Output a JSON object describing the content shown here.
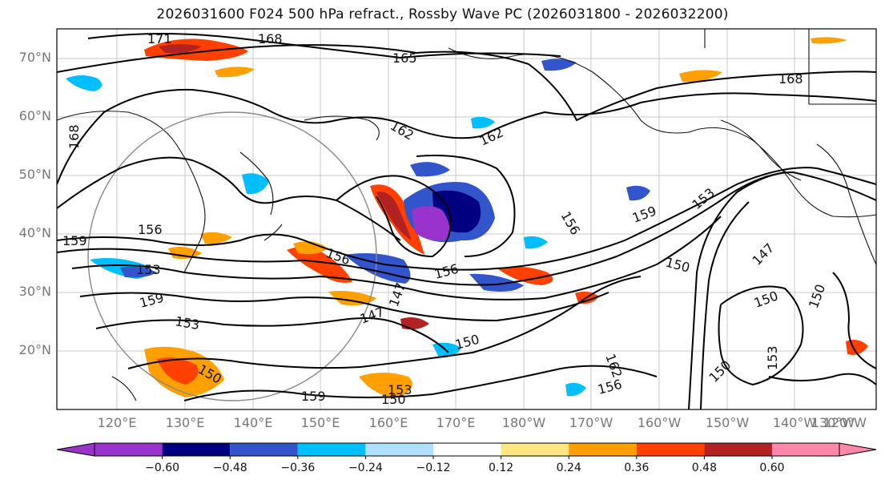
{
  "title": "2026031600 F024 500 hPa refract., Rossby Wave PC (2026031800 - 2026032200)",
  "lat_labels": [
    "70°N",
    "60°N",
    "50°N",
    "40°N",
    "30°N",
    "20°N"
  ],
  "lon_labels": [
    "120°E",
    "130°E",
    "140°E",
    "150°E",
    "160°E",
    "170°E",
    "180°W",
    "170°W",
    "160°W",
    "150°W",
    "140°W",
    "130°W",
    "120°W"
  ],
  "colorbar": {
    "ticks": [
      "−0.60",
      "−0.48",
      "−0.36",
      "−0.24",
      "−0.12",
      "0.12",
      "0.24",
      "0.36",
      "0.48",
      "0.60"
    ],
    "colors": [
      "#9933cc",
      "#000080",
      "#3355cc",
      "#00bfff",
      "#b0e0ff",
      "#ffffff",
      "#ffe680",
      "#ffa000",
      "#ff4000",
      "#b22222",
      "#ff88aa"
    ]
  },
  "contour_labels": {
    "c171": "171",
    "c168a": "168",
    "c165": "165",
    "c168b": "168",
    "c168c": "168",
    "c162a": "162",
    "c162b": "162",
    "c159a": "159",
    "c159b": "159",
    "c159c": "159",
    "c159d": "159",
    "c156a": "156",
    "c156b": "156",
    "c156c": "156",
    "c156d": "156",
    "c156e": "156",
    "c153a": "153",
    "c153b": "153",
    "c153c": "153",
    "c153d": "153",
    "c150a": "150",
    "c150b": "150",
    "c150c": "150",
    "c150d": "150",
    "c150e": "150",
    "c150f": "150",
    "c147a": "147",
    "c147b": "147",
    "c147c": "147",
    "c162c": "162",
    "c153e": "153",
    "c150g": "150"
  }
}
